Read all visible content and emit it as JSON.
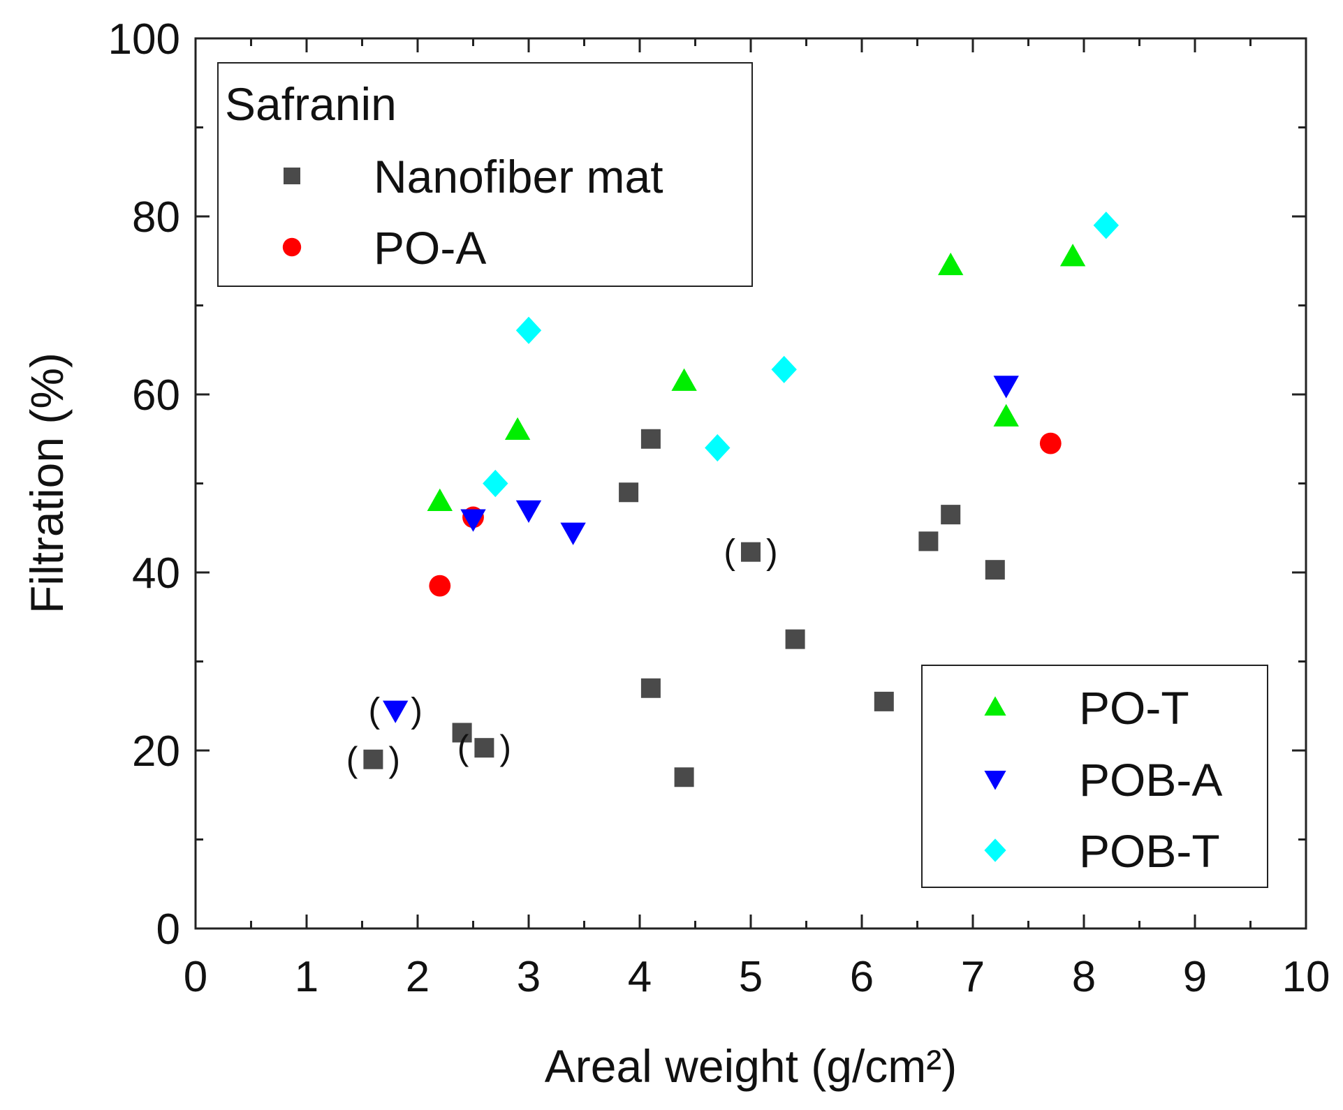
{
  "chart_data": {
    "type": "scatter",
    "title": "",
    "xlabel": "Areal weight (g/cm²)",
    "ylabel": "Filtration (%)",
    "xlim": [
      0,
      10
    ],
    "ylim": [
      0,
      100
    ],
    "x_ticks": [
      "0",
      "1",
      "2",
      "3",
      "4",
      "5",
      "6",
      "7",
      "8",
      "9",
      "10"
    ],
    "y_ticks": [
      "0",
      "20",
      "40",
      "60",
      "80",
      "100"
    ],
    "grid": false,
    "legend_title": "Safranin",
    "legend_placement": [
      "top-left",
      "bottom-right"
    ],
    "series": [
      {
        "name": "Nanofiber mat",
        "marker": "square",
        "color": "#4a4a4a",
        "points": [
          {
            "x": 1.6,
            "y": 19.0,
            "paren": true
          },
          {
            "x": 2.4,
            "y": 22.0
          },
          {
            "x": 2.6,
            "y": 20.3,
            "paren": true
          },
          {
            "x": 3.9,
            "y": 49.0
          },
          {
            "x": 4.1,
            "y": 55.0
          },
          {
            "x": 4.1,
            "y": 27.0
          },
          {
            "x": 4.4,
            "y": 17.0
          },
          {
            "x": 5.0,
            "y": 42.3,
            "paren": true
          },
          {
            "x": 5.4,
            "y": 32.5
          },
          {
            "x": 6.2,
            "y": 25.5
          },
          {
            "x": 6.6,
            "y": 43.5
          },
          {
            "x": 6.8,
            "y": 46.5
          },
          {
            "x": 7.2,
            "y": 40.3
          }
        ]
      },
      {
        "name": "PO-A",
        "marker": "circle",
        "color": "#ff0000",
        "points": [
          {
            "x": 2.2,
            "y": 38.5
          },
          {
            "x": 2.5,
            "y": 46.2
          },
          {
            "x": 7.7,
            "y": 54.5
          }
        ]
      },
      {
        "name": "PO-T",
        "marker": "triangle-up",
        "color": "#00ee00",
        "points": [
          {
            "x": 2.2,
            "y": 48.0
          },
          {
            "x": 2.9,
            "y": 56.0
          },
          {
            "x": 4.4,
            "y": 61.5
          },
          {
            "x": 6.8,
            "y": 74.5
          },
          {
            "x": 7.3,
            "y": 57.5
          },
          {
            "x": 7.9,
            "y": 75.5
          }
        ]
      },
      {
        "name": "POB-A",
        "marker": "triangle-down",
        "color": "#0000ff",
        "points": [
          {
            "x": 1.8,
            "y": 24.5,
            "paren": true
          },
          {
            "x": 2.5,
            "y": 46.0
          },
          {
            "x": 3.0,
            "y": 47.0
          },
          {
            "x": 3.4,
            "y": 44.5
          },
          {
            "x": 7.3,
            "y": 61.0
          }
        ]
      },
      {
        "name": "POB-T",
        "marker": "diamond",
        "color": "#00ffff",
        "points": [
          {
            "x": 2.7,
            "y": 50.0
          },
          {
            "x": 3.0,
            "y": 67.2
          },
          {
            "x": 4.7,
            "y": 54.0
          },
          {
            "x": 5.3,
            "y": 62.8
          },
          {
            "x": 8.2,
            "y": 79.0
          }
        ]
      }
    ]
  }
}
